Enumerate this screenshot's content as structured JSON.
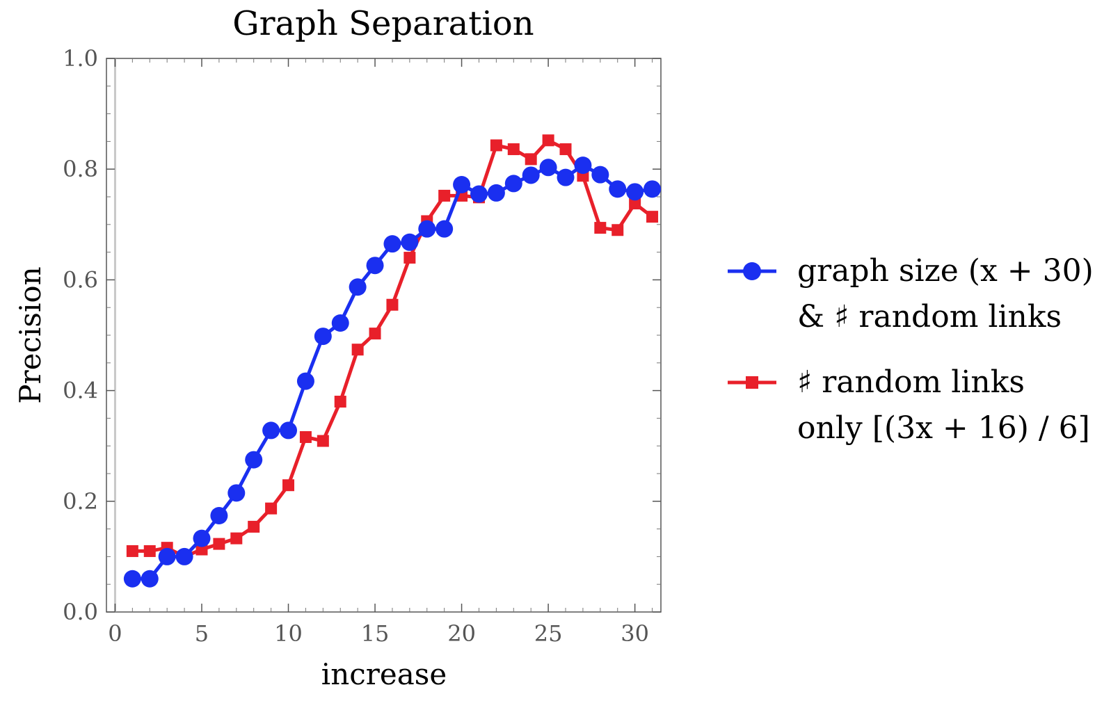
{
  "chart_data": {
    "type": "line",
    "title": "Graph Separation",
    "xlabel": "increase",
    "ylabel": "Precision",
    "xlim": [
      -0.5,
      31.5
    ],
    "ylim": [
      0.0,
      1.0
    ],
    "x_ticks": [
      0,
      5,
      10,
      15,
      20,
      25,
      30
    ],
    "x_tick_labels": [
      "0",
      "5",
      "10",
      "15",
      "20",
      "25",
      "30"
    ],
    "y_ticks": [
      0.0,
      0.2,
      0.4,
      0.6,
      0.8,
      1.0
    ],
    "y_tick_labels": [
      "0.0",
      "0.2",
      "0.4",
      "0.6",
      "0.8",
      "1.0"
    ],
    "grid": false,
    "legend_position": "right",
    "x": [
      1,
      2,
      3,
      4,
      5,
      6,
      7,
      8,
      9,
      10,
      11,
      12,
      13,
      14,
      15,
      16,
      17,
      18,
      19,
      20,
      21,
      22,
      23,
      24,
      25,
      26,
      27,
      28,
      29,
      30,
      31
    ],
    "series": [
      {
        "name_lines": [
          "graph size (x + 30)",
          "& ♯ random links"
        ],
        "color": "#1a2ff0",
        "marker": "circle",
        "values": [
          0.06,
          0.06,
          0.1,
          0.1,
          0.133,
          0.174,
          0.215,
          0.275,
          0.328,
          0.328,
          0.417,
          0.498,
          0.522,
          0.587,
          0.626,
          0.665,
          0.668,
          0.692,
          0.692,
          0.772,
          0.755,
          0.757,
          0.774,
          0.789,
          0.803,
          0.785,
          0.807,
          0.79,
          0.764,
          0.759,
          0.764
        ]
      },
      {
        "name_lines": [
          "♯ random links",
          "only [(3x + 16) / 6]"
        ],
        "color": "#e8202a",
        "marker": "square",
        "values": [
          0.11,
          0.11,
          0.116,
          0.1,
          0.113,
          0.123,
          0.133,
          0.154,
          0.187,
          0.229,
          0.316,
          0.309,
          0.38,
          0.474,
          0.503,
          0.555,
          0.64,
          0.706,
          0.752,
          0.752,
          0.749,
          0.843,
          0.836,
          0.818,
          0.852,
          0.836,
          0.788,
          0.694,
          0.69,
          0.738,
          0.714
        ]
      }
    ]
  }
}
